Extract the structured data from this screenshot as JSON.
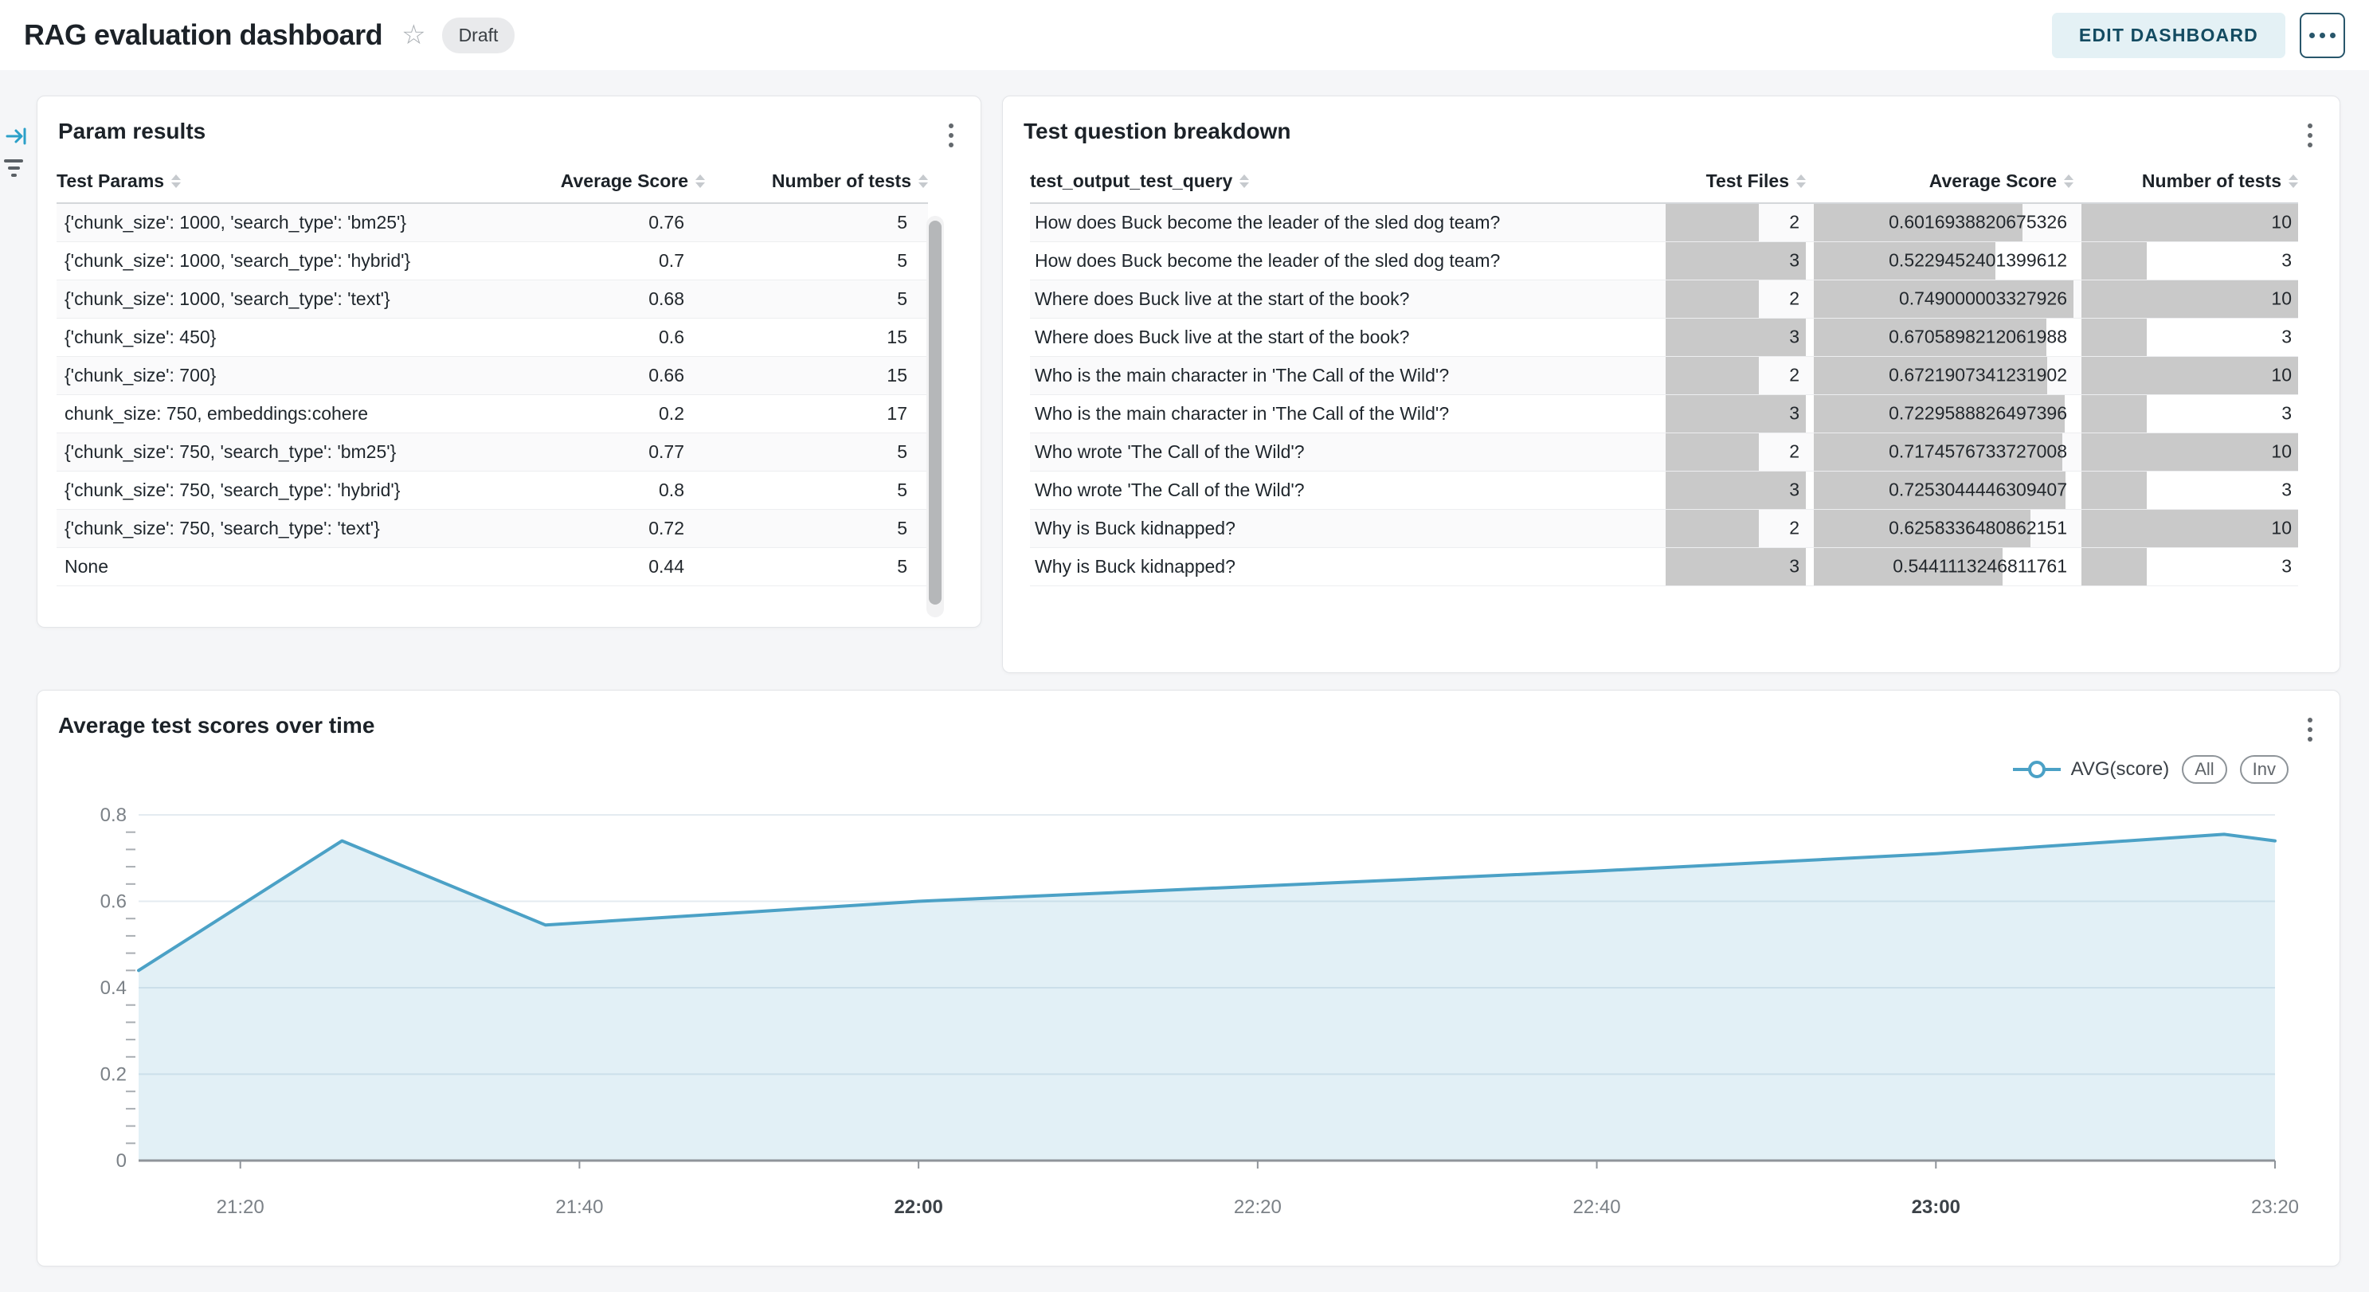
{
  "header": {
    "title": "RAG evaluation dashboard",
    "status_badge": "Draft",
    "edit_button": "EDIT DASHBOARD"
  },
  "param_results": {
    "title": "Param results",
    "columns": [
      "Test Params",
      "Average Score",
      "Number of tests"
    ],
    "rows": [
      {
        "params": "{'chunk_size': 1000, 'search_type': 'bm25'}",
        "avg_score": "0.76",
        "num_tests": "5"
      },
      {
        "params": "{'chunk_size': 1000, 'search_type': 'hybrid'}",
        "avg_score": "0.7",
        "num_tests": "5"
      },
      {
        "params": "{'chunk_size': 1000, 'search_type': 'text'}",
        "avg_score": "0.68",
        "num_tests": "5"
      },
      {
        "params": "{'chunk_size': 450}",
        "avg_score": "0.6",
        "num_tests": "15"
      },
      {
        "params": "{'chunk_size': 700}",
        "avg_score": "0.66",
        "num_tests": "15"
      },
      {
        "params": "chunk_size: 750, embeddings:cohere",
        "avg_score": "0.2",
        "num_tests": "17"
      },
      {
        "params": "{'chunk_size': 750, 'search_type': 'bm25'}",
        "avg_score": "0.77",
        "num_tests": "5"
      },
      {
        "params": "{'chunk_size': 750, 'search_type': 'hybrid'}",
        "avg_score": "0.8",
        "num_tests": "5"
      },
      {
        "params": "{'chunk_size': 750, 'search_type': 'text'}",
        "avg_score": "0.72",
        "num_tests": "5"
      },
      {
        "params": "None",
        "avg_score": "0.44",
        "num_tests": "5"
      }
    ]
  },
  "question_breakdown": {
    "title": "Test question breakdown",
    "columns": [
      "test_output_test_query",
      "Test Files",
      "Average Score",
      "Number of tests"
    ],
    "bar_color": "#C9C9C9",
    "rows": [
      {
        "query": "How does Buck become the leader of the sled dog team?",
        "files": 2,
        "score": "0.6016938820675326",
        "tests": 10
      },
      {
        "query": "How does Buck become the leader of the sled dog team?",
        "files": 3,
        "score": "0.5229452401399612",
        "tests": 3
      },
      {
        "query": "Where does Buck live at the start of the book?",
        "files": 2,
        "score": "0.749000003327926",
        "tests": 10
      },
      {
        "query": "Where does Buck live at the start of the book?",
        "files": 3,
        "score": "0.6705898212061988",
        "tests": 3
      },
      {
        "query": "Who is the main character in 'The Call of the Wild'?",
        "files": 2,
        "score": "0.6721907341231902",
        "tests": 10
      },
      {
        "query": "Who is the main character in 'The Call of the Wild'?",
        "files": 3,
        "score": "0.7229588826497396",
        "tests": 3
      },
      {
        "query": "Who wrote 'The Call of the Wild'?",
        "files": 2,
        "score": "0.7174576733727008",
        "tests": 10
      },
      {
        "query": "Who wrote 'The Call of the Wild'?",
        "files": 3,
        "score": "0.7253044446309407",
        "tests": 3
      },
      {
        "query": "Why is Buck kidnapped?",
        "files": 2,
        "score": "0.6258336480862151",
        "tests": 10
      },
      {
        "query": "Why is Buck kidnapped?",
        "files": 3,
        "score": "0.5441113246811761",
        "tests": 3
      }
    ]
  },
  "chart_ui": {
    "pills": [
      "All",
      "Inv"
    ]
  },
  "chart_data": {
    "type": "area",
    "title": "Average test scores over time",
    "series": [
      {
        "name": "AVG(score)",
        "points": [
          [
            "21:14",
            0.44
          ],
          [
            "21:26",
            0.74
          ],
          [
            "21:38",
            0.545
          ],
          [
            "22:00",
            0.6
          ],
          [
            "22:20",
            0.635
          ],
          [
            "22:40",
            0.67
          ],
          [
            "23:00",
            0.71
          ],
          [
            "23:17",
            0.755
          ],
          [
            "23:20",
            0.74
          ]
        ]
      }
    ],
    "x_ticks": [
      {
        "label": "21:20",
        "bold": false
      },
      {
        "label": "21:40",
        "bold": false
      },
      {
        "label": "22:00",
        "bold": true
      },
      {
        "label": "22:20",
        "bold": false
      },
      {
        "label": "22:40",
        "bold": false
      },
      {
        "label": "23:00",
        "bold": true
      },
      {
        "label": "23:20",
        "bold": false
      }
    ],
    "y_ticks": [
      0,
      0.2,
      0.4,
      0.6,
      0.8
    ],
    "ylim": [
      0,
      0.8
    ],
    "y_minor_step": 0.04,
    "grid": "horizontal",
    "legend_position": "top-right",
    "line_color": "#4BA1C6",
    "fill_color": "rgba(77,162,198,0.16)",
    "grid_color": "#E4EBF1",
    "axis_color": "#8F949A",
    "tick_label_color": "#7B8187",
    "bold_tick_label_color": "#3C4248"
  }
}
